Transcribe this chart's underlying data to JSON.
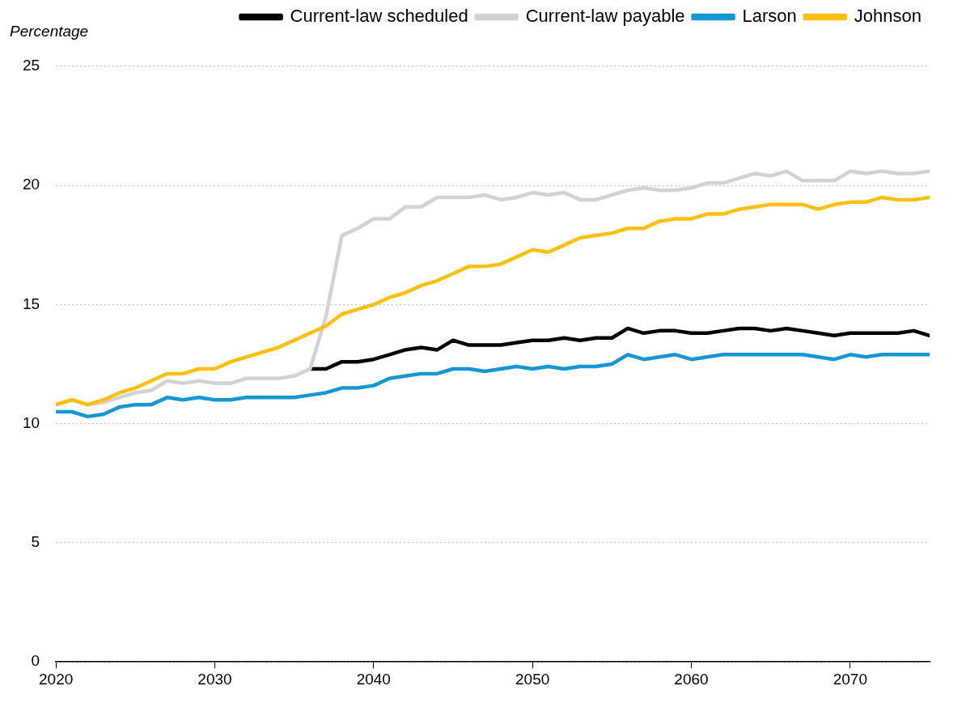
{
  "chart_data": {
    "type": "line",
    "ylabel": "Percentage",
    "x": [
      2020,
      2021,
      2022,
      2023,
      2024,
      2025,
      2026,
      2027,
      2028,
      2029,
      2030,
      2031,
      2032,
      2033,
      2034,
      2035,
      2036,
      2037,
      2038,
      2039,
      2040,
      2041,
      2042,
      2043,
      2044,
      2045,
      2046,
      2047,
      2048,
      2049,
      2050,
      2051,
      2052,
      2053,
      2054,
      2055,
      2056,
      2057,
      2058,
      2059,
      2060,
      2061,
      2062,
      2063,
      2064,
      2065,
      2066,
      2067,
      2068,
      2069,
      2070,
      2071,
      2072,
      2073,
      2074,
      2075
    ],
    "series": [
      {
        "name": "Current-law scheduled",
        "color": "#000000",
        "values": [
          null,
          null,
          null,
          null,
          null,
          null,
          null,
          null,
          null,
          null,
          null,
          null,
          null,
          null,
          null,
          null,
          12.3,
          12.3,
          12.6,
          12.6,
          12.7,
          12.9,
          13.1,
          13.2,
          13.1,
          13.5,
          13.3,
          13.3,
          13.3,
          13.4,
          13.5,
          13.5,
          13.6,
          13.5,
          13.6,
          13.6,
          14.0,
          13.8,
          13.9,
          13.9,
          13.8,
          13.8,
          13.9,
          14.0,
          14.0,
          13.9,
          14.0,
          13.9,
          13.8,
          13.7,
          13.8,
          13.8,
          13.8,
          13.8,
          13.9,
          13.7
        ]
      },
      {
        "name": "Current-law payable",
        "color": "#d2d2d2",
        "values": [
          10.8,
          11.0,
          10.8,
          10.9,
          11.1,
          11.3,
          11.4,
          11.8,
          11.7,
          11.8,
          11.7,
          11.7,
          11.9,
          11.9,
          11.9,
          12.0,
          12.3,
          14.5,
          17.9,
          18.2,
          18.6,
          18.6,
          19.1,
          19.1,
          19.5,
          19.5,
          19.5,
          19.6,
          19.4,
          19.5,
          19.7,
          19.6,
          19.7,
          19.4,
          19.4,
          19.6,
          19.8,
          19.9,
          19.8,
          19.8,
          19.9,
          20.1,
          20.1,
          20.3,
          20.5,
          20.4,
          20.6,
          20.2,
          20.2,
          20.2,
          20.6,
          20.5,
          20.6,
          20.5,
          20.5,
          20.6
        ]
      },
      {
        "name": "Larson",
        "color": "#1696d2",
        "values": [
          10.5,
          10.5,
          10.3,
          10.4,
          10.7,
          10.8,
          10.8,
          11.1,
          11.0,
          11.1,
          11.0,
          11.0,
          11.1,
          11.1,
          11.1,
          11.1,
          11.2,
          11.3,
          11.5,
          11.5,
          11.6,
          11.9,
          12.0,
          12.1,
          12.1,
          12.3,
          12.3,
          12.2,
          12.3,
          12.4,
          12.3,
          12.4,
          12.3,
          12.4,
          12.4,
          12.5,
          12.9,
          12.7,
          12.8,
          12.9,
          12.7,
          12.8,
          12.9,
          12.9,
          12.9,
          12.9,
          12.9,
          12.9,
          12.8,
          12.7,
          12.9,
          12.8,
          12.9,
          12.9,
          12.9,
          12.9
        ]
      },
      {
        "name": "Johnson",
        "color": "#fdbf11",
        "values": [
          10.8,
          11.0,
          10.8,
          11.0,
          11.3,
          11.5,
          11.8,
          12.1,
          12.1,
          12.3,
          12.3,
          12.6,
          12.8,
          13.0,
          13.2,
          13.5,
          13.8,
          14.1,
          14.6,
          14.8,
          15.0,
          15.3,
          15.5,
          15.8,
          16.0,
          16.3,
          16.6,
          16.6,
          16.7,
          17.0,
          17.3,
          17.2,
          17.5,
          17.8,
          17.9,
          18.0,
          18.2,
          18.2,
          18.5,
          18.6,
          18.6,
          18.8,
          18.8,
          19.0,
          19.1,
          19.2,
          19.2,
          19.2,
          19.0,
          19.2,
          19.3,
          19.3,
          19.5,
          19.4,
          19.4,
          19.5
        ]
      }
    ],
    "xlim": [
      2020,
      2075
    ],
    "xticks": [
      2020,
      2030,
      2040,
      2050,
      2060,
      2070
    ],
    "ylim": [
      0,
      25
    ],
    "yticks": [
      0,
      5,
      10,
      15,
      20,
      25
    ],
    "grid": "y",
    "legend": "top",
    "marker": "none",
    "line_style": "solid"
  }
}
